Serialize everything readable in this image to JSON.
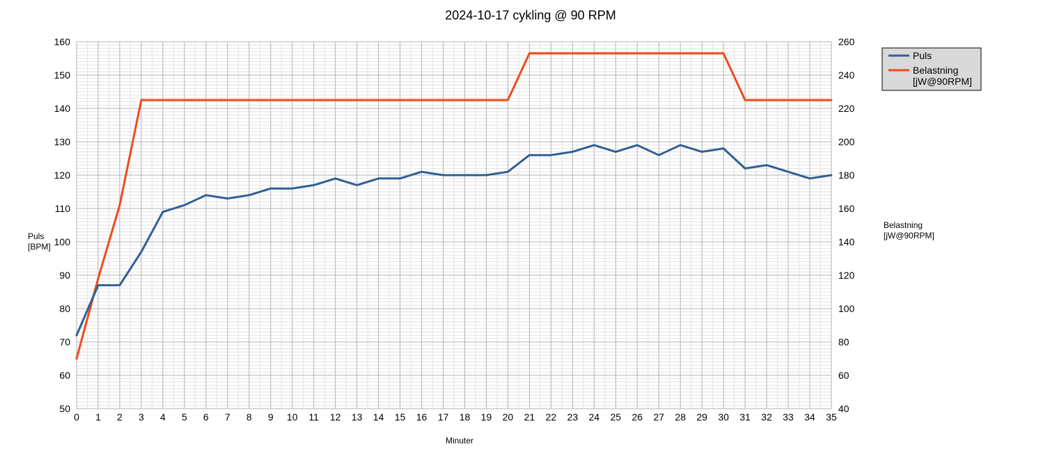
{
  "chart_data": {
    "type": "line",
    "title": "2024-10-17 cykling @ 90 RPM",
    "xlabel": "Minuter",
    "ylabel": [
      "Puls",
      "[BPM]"
    ],
    "y2label": [
      "Belastning",
      "[jW@90RPM]"
    ],
    "x": [
      0,
      1,
      2,
      3,
      4,
      5,
      6,
      7,
      8,
      9,
      10,
      11,
      12,
      13,
      14,
      15,
      16,
      17,
      18,
      19,
      20,
      21,
      22,
      23,
      24,
      25,
      26,
      27,
      28,
      29,
      30,
      31,
      32,
      33,
      34,
      35
    ],
    "xlim": [
      0,
      35
    ],
    "ylim": [
      50,
      160
    ],
    "y2lim": [
      40,
      260
    ],
    "y_ticks": [
      50,
      60,
      70,
      80,
      90,
      100,
      110,
      120,
      130,
      140,
      150,
      160
    ],
    "y2_ticks": [
      40,
      60,
      80,
      100,
      120,
      140,
      160,
      180,
      200,
      220,
      240,
      260
    ],
    "grid": true,
    "legend_position": "right",
    "series": [
      {
        "name": "Puls",
        "axis": "left",
        "color": "#2f5f94",
        "values": [
          72,
          87,
          87,
          97,
          109,
          111,
          114,
          113,
          114,
          116,
          116,
          117,
          119,
          117,
          119,
          119,
          121,
          120,
          120,
          120,
          121,
          126,
          126,
          127,
          129,
          127,
          129,
          126,
          129,
          127,
          128,
          122,
          123,
          121,
          119,
          120
        ]
      },
      {
        "name": "Belastning\n[jW@90RPM]",
        "legend_lines": [
          "Belastning",
          "[jW@90RPM]"
        ],
        "axis": "right",
        "color": "#ee4b1d",
        "values": [
          70,
          118,
          162,
          225,
          225,
          225,
          225,
          225,
          225,
          225,
          225,
          225,
          225,
          225,
          225,
          225,
          225,
          225,
          225,
          225,
          225,
          253,
          253,
          253,
          253,
          253,
          253,
          253,
          253,
          253,
          253,
          225,
          225,
          225,
          225,
          225
        ]
      }
    ]
  }
}
